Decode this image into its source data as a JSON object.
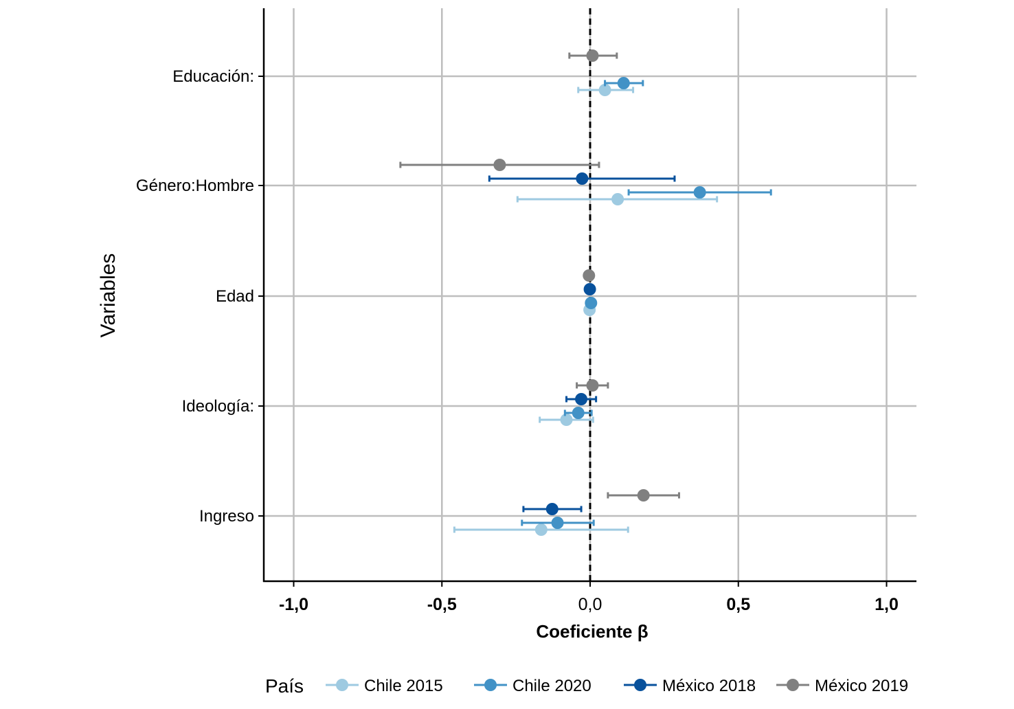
{
  "chart_data": {
    "type": "dot-whisker",
    "title": "",
    "xlabel": "Coeficiente β",
    "ylabel": "Variables",
    "xlim": [
      -1.1,
      1.1
    ],
    "x_ticks": [
      -1.0,
      -0.5,
      0.0,
      0.5,
      1.0
    ],
    "x_tick_labels": [
      "-1,0",
      "-0,5",
      "0,0",
      "0,5",
      "1,0"
    ],
    "grid": true,
    "reference_line": 0.0,
    "categories": [
      "Educación:",
      "Género:Hombre",
      "Edad",
      "Ideología:",
      "Ingreso"
    ],
    "legend": {
      "title": "País",
      "placement": "bottom"
    },
    "series": [
      {
        "name": "Chile 2015",
        "color": "#9ECAE1",
        "points": [
          {
            "variable": "Educación:",
            "estimate": 0.05,
            "low": -0.04,
            "high": 0.145
          },
          {
            "variable": "Género:Hombre",
            "estimate": 0.093,
            "low": -0.245,
            "high": 0.428
          },
          {
            "variable": "Edad",
            "estimate": -0.002,
            "low": null,
            "high": null
          },
          {
            "variable": "Ideología:",
            "estimate": -0.08,
            "low": -0.17,
            "high": 0.01
          },
          {
            "variable": "Ingreso",
            "estimate": -0.165,
            "low": -0.458,
            "high": 0.128
          }
        ]
      },
      {
        "name": "Chile 2020",
        "color": "#4292C6",
        "points": [
          {
            "variable": "Educación:",
            "estimate": 0.113,
            "low": 0.05,
            "high": 0.178
          },
          {
            "variable": "Género:Hombre",
            "estimate": 0.37,
            "low": 0.13,
            "high": 0.61
          },
          {
            "variable": "Edad",
            "estimate": 0.003,
            "low": null,
            "high": null
          },
          {
            "variable": "Ideología:",
            "estimate": -0.04,
            "low": -0.085,
            "high": 0.005
          },
          {
            "variable": "Ingreso",
            "estimate": -0.11,
            "low": -0.23,
            "high": 0.012
          }
        ]
      },
      {
        "name": "México 2018",
        "color": "#08519C",
        "points": [
          {
            "variable": "Género:Hombre",
            "estimate": -0.027,
            "low": -0.34,
            "high": 0.285
          },
          {
            "variable": "Edad",
            "estimate": -0.001,
            "low": null,
            "high": null
          },
          {
            "variable": "Ideología:",
            "estimate": -0.03,
            "low": -0.08,
            "high": 0.02
          },
          {
            "variable": "Ingreso",
            "estimate": -0.128,
            "low": -0.225,
            "high": -0.03
          }
        ]
      },
      {
        "name": "México 2019",
        "color": "#808080",
        "points": [
          {
            "variable": "Educación:",
            "estimate": 0.008,
            "low": -0.07,
            "high": 0.09
          },
          {
            "variable": "Género:Hombre",
            "estimate": -0.305,
            "low": -0.64,
            "high": 0.03
          },
          {
            "variable": "Edad",
            "estimate": -0.004,
            "low": null,
            "high": null
          },
          {
            "variable": "Ideología:",
            "estimate": 0.008,
            "low": -0.045,
            "high": 0.06
          },
          {
            "variable": "Ingreso",
            "estimate": 0.18,
            "low": 0.06,
            "high": 0.3
          }
        ]
      }
    ]
  }
}
